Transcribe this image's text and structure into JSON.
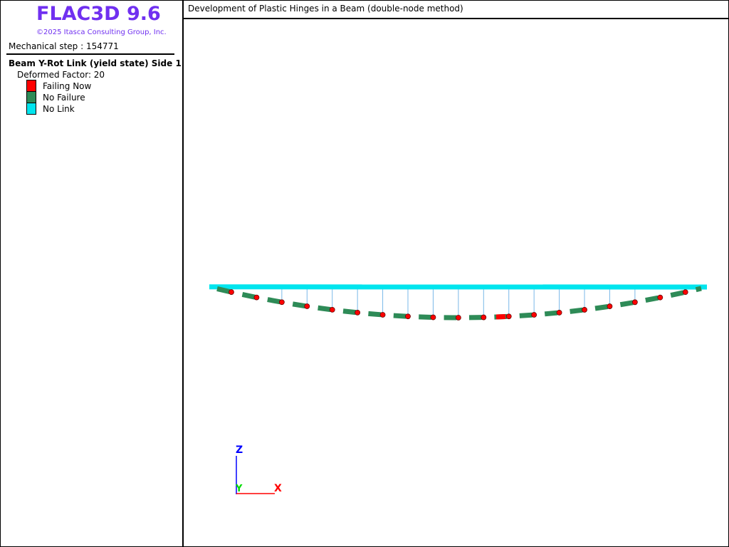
{
  "header": {
    "title": "FLAC3D 9.6",
    "copyright": "©2025 Itasca Consulting Group, Inc."
  },
  "step": "Mechanical step : 154771",
  "legend": {
    "title": "Beam Y-Rot Link (yield state) Side 1",
    "subtitle": "Deformed Factor: 20",
    "items": [
      {
        "label": "Failing Now",
        "color": "#ff0000"
      },
      {
        "label": "No Failure",
        "color": "#2e8b57"
      },
      {
        "label": "No Link",
        "color": "#00e5ee"
      }
    ]
  },
  "viewport": {
    "title": "Development of Plastic Hinges in a Beam (double-node method)",
    "axes": {
      "z": "Z",
      "y": "Y",
      "x": "X"
    }
  }
}
